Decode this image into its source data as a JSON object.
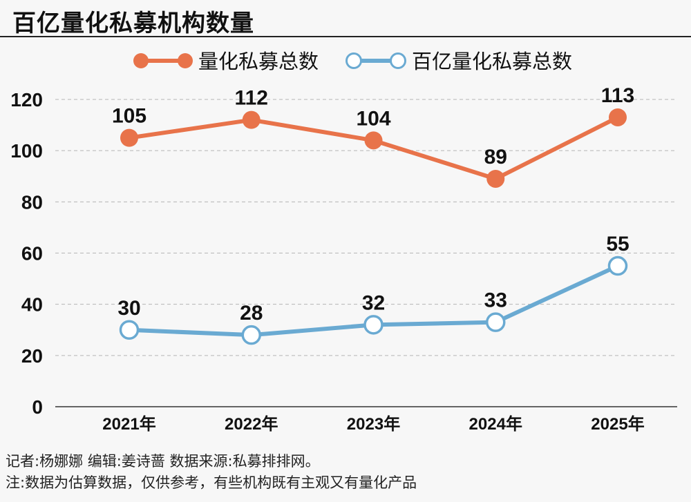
{
  "chart_data": {
    "type": "line",
    "title": "百亿量化私募机构数量",
    "categories": [
      "2021年",
      "2022年",
      "2023年",
      "2024年",
      "2025年"
    ],
    "series": [
      {
        "name": "量化私募总数",
        "values": [
          105,
          112,
          104,
          89,
          113
        ],
        "color": "#e8734a",
        "marker": "filled-circle"
      },
      {
        "name": "百亿量化私募总数",
        "values": [
          30,
          28,
          32,
          33,
          55
        ],
        "color": "#6aaad2",
        "marker": "hollow-circle"
      }
    ],
    "ylim": [
      0,
      120
    ],
    "yticks": [
      0,
      20,
      40,
      60,
      80,
      100,
      120
    ],
    "grid": "horizontal-dashed",
    "legend": "top-center",
    "data_labels": true
  },
  "footer": {
    "credits": "记者:杨娜娜    编辑:姜诗蔷   数据来源:私募排排网。",
    "note": "注:数据为估算数据，仅供参考，有些机构既有主观又有量化产品"
  }
}
